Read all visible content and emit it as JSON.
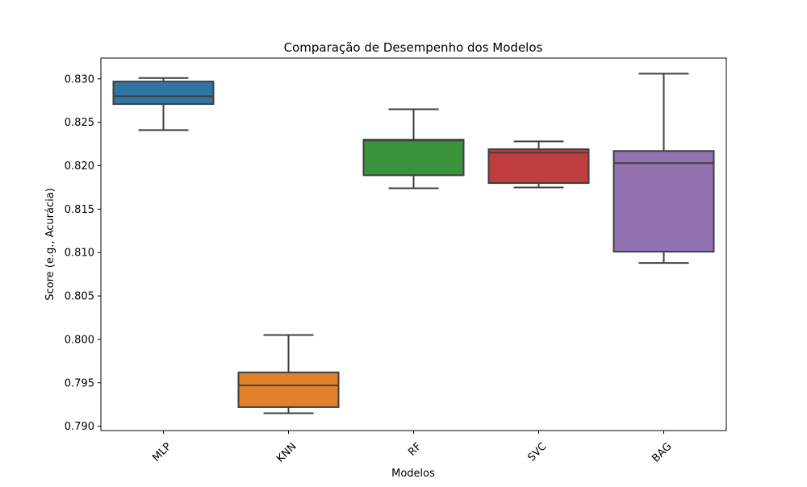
{
  "chart_data": {
    "type": "box",
    "title": "Comparação de Desempenho dos Modelos",
    "xlabel": "Modelos",
    "ylabel": "Score (e.g., Acurácia)",
    "ylim": [
      0.7895,
      0.8324
    ],
    "yticks": [
      0.79,
      0.795,
      0.8,
      0.805,
      0.81,
      0.815,
      0.82,
      0.825,
      0.83
    ],
    "ytick_labels": [
      "0.790",
      "0.795",
      "0.800",
      "0.805",
      "0.810",
      "0.815",
      "0.820",
      "0.825",
      "0.830"
    ],
    "grid": false,
    "categories": [
      "MLP",
      "KNN",
      "RF",
      "SVC",
      "BAG"
    ],
    "boxes": [
      {
        "category": "MLP",
        "whisker_low": 0.8241,
        "q1": 0.8271,
        "median": 0.828,
        "q3": 0.8297,
        "whisker_high": 0.8301,
        "color": "#3274a1"
      },
      {
        "category": "KNN",
        "whisker_low": 0.7915,
        "q1": 0.7922,
        "median": 0.7947,
        "q3": 0.7962,
        "whisker_high": 0.8005,
        "color": "#e1812c"
      },
      {
        "category": "RF",
        "whisker_low": 0.8174,
        "q1": 0.8189,
        "median": 0.8229,
        "q3": 0.823,
        "whisker_high": 0.8265,
        "color": "#3a923a"
      },
      {
        "category": "SVC",
        "whisker_low": 0.8175,
        "q1": 0.818,
        "median": 0.8215,
        "q3": 0.8219,
        "whisker_high": 0.8228,
        "color": "#c03d3e"
      },
      {
        "category": "BAG",
        "whisker_low": 0.8088,
        "q1": 0.8101,
        "median": 0.8203,
        "q3": 0.8217,
        "whisker_high": 0.8306,
        "color": "#9372b2"
      }
    ]
  }
}
